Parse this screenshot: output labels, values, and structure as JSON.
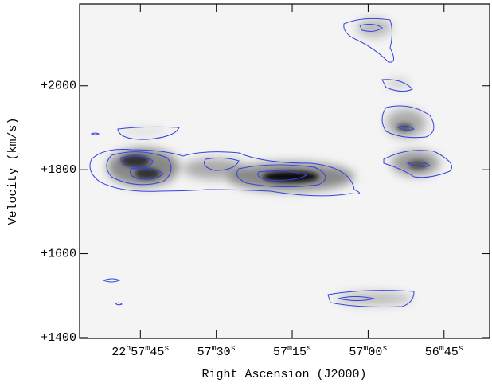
{
  "chart_data": {
    "type": "image",
    "xlabel": "Right Ascension (J2000)",
    "ylabel": "Velocity (km/s)",
    "xlim": [
      82677,
      82596
    ],
    "xticks": [
      {
        "value": 82665,
        "label": "22h57m45s"
      },
      {
        "value": 82650,
        "label": "57m30s"
      },
      {
        "value": 82635,
        "label": "57m15s"
      },
      {
        "value": 82620,
        "label": "57m00s"
      },
      {
        "value": 82605,
        "label": "56m45s"
      }
    ],
    "ylim": [
      1398,
      2195
    ],
    "yticks": [
      {
        "value": 1400,
        "label": "+1400"
      },
      {
        "value": 1600,
        "label": "+1600"
      },
      {
        "value": 1800,
        "label": "+1800"
      },
      {
        "value": 2000,
        "label": "+2000"
      }
    ]
  }
}
